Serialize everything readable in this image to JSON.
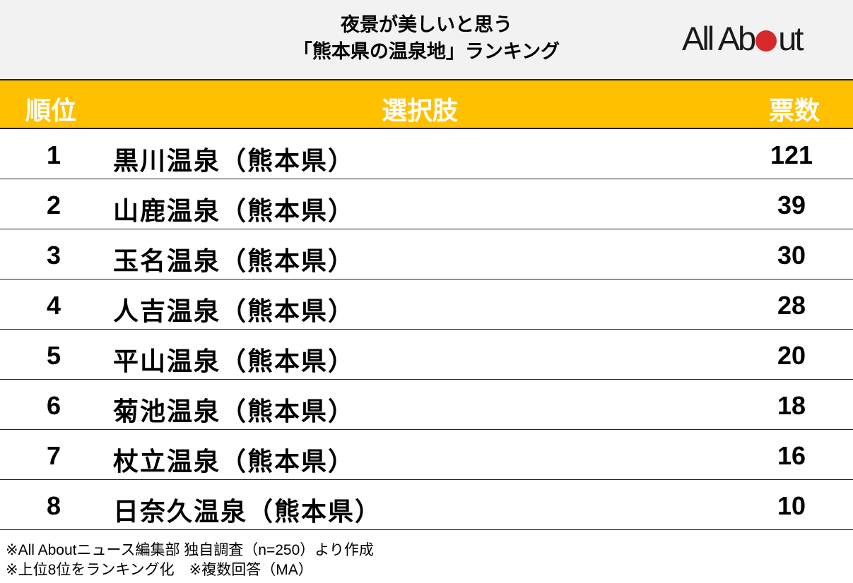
{
  "title_line1": "夜景が美しいと思う",
  "title_line2": "「熊本県の温泉地」ランキング",
  "logo": {
    "text_left": "All Ab",
    "text_right": "ut",
    "dot_color": "#d7282c"
  },
  "colors": {
    "header": "#ffc000",
    "title_bg": "#f2f2f2"
  },
  "chart_data": {
    "type": "table",
    "columns": [
      "順位",
      "選択肢",
      "票数"
    ],
    "rows": [
      {
        "rank": "1",
        "name": "黒川温泉（熊本県）",
        "votes": "121"
      },
      {
        "rank": "2",
        "name": "山鹿温泉（熊本県）",
        "votes": "39"
      },
      {
        "rank": "3",
        "name": "玉名温泉（熊本県）",
        "votes": "30"
      },
      {
        "rank": "4",
        "name": "人吉温泉（熊本県）",
        "votes": "28"
      },
      {
        "rank": "5",
        "name": "平山温泉（熊本県）",
        "votes": "20"
      },
      {
        "rank": "6",
        "name": "菊池温泉（熊本県）",
        "votes": "18"
      },
      {
        "rank": "7",
        "name": "杖立温泉（熊本県）",
        "votes": "16"
      },
      {
        "rank": "8",
        "name": "日奈久温泉（熊本県）",
        "votes": "10"
      }
    ]
  },
  "footnotes": [
    "※All Aboutニュース編集部 独自調査（n=250）より作成",
    "※上位8位をランキング化　※複数回答（MA）"
  ]
}
